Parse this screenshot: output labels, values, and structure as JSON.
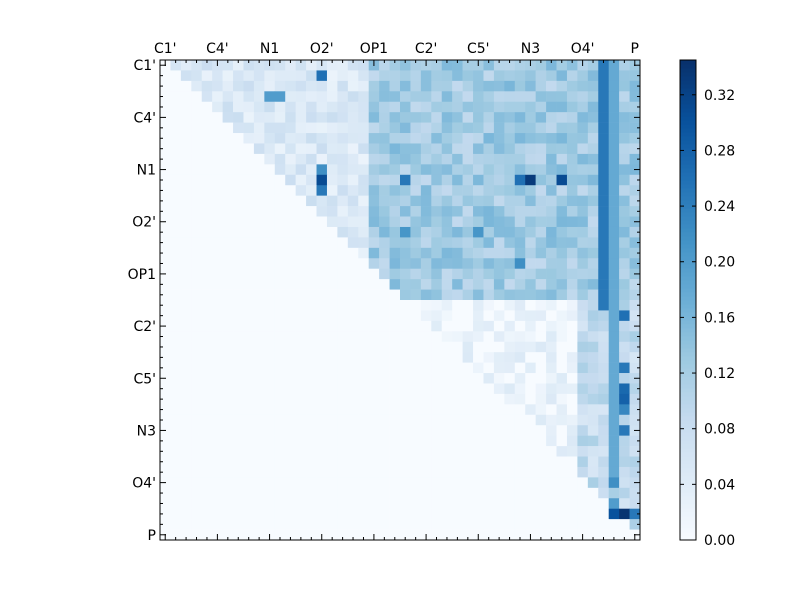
{
  "chart_data": {
    "type": "heatmap",
    "title": "",
    "xlabel": "",
    "ylabel": "",
    "n": 46,
    "tick_labels": [
      "C1'",
      "C4'",
      "N1",
      "O2'",
      "OP1",
      "C2'",
      "C5'",
      "N3",
      "O4'",
      "P"
    ],
    "tick_label_positions": [
      0,
      5,
      10,
      15,
      20,
      25,
      30,
      35,
      40,
      45
    ],
    "x_tick_labels_position": "top",
    "y_tick_labels_position": "left",
    "mask": "upper-triangle (values below diagonal are 0)",
    "colormap": "Blues",
    "vmin": 0.0,
    "vmax": 0.345,
    "colorbar": {
      "ticks": [
        "0.00",
        "0.04",
        "0.08",
        "0.12",
        "0.16",
        "0.20",
        "0.24",
        "0.28",
        "0.32"
      ],
      "tick_values": [
        0.0,
        0.04,
        0.08,
        0.12,
        0.16,
        0.2,
        0.24,
        0.28,
        0.32
      ]
    },
    "notable_cells": [
      {
        "row": 1,
        "col": 15,
        "value": 0.26
      },
      {
        "row": 3,
        "col": 10,
        "value": 0.2
      },
      {
        "row": 3,
        "col": 11,
        "value": 0.2
      },
      {
        "row": 10,
        "col": 15,
        "value": 0.22
      },
      {
        "row": 11,
        "col": 15,
        "value": 0.31
      },
      {
        "row": 11,
        "col": 23,
        "value": 0.25
      },
      {
        "row": 11,
        "col": 34,
        "value": 0.26
      },
      {
        "row": 11,
        "col": 35,
        "value": 0.33
      },
      {
        "row": 11,
        "col": 38,
        "value": 0.31
      },
      {
        "row": 12,
        "col": 15,
        "value": 0.25
      },
      {
        "row": 16,
        "col": 23,
        "value": 0.21
      },
      {
        "row": 16,
        "col": 30,
        "value": 0.21
      },
      {
        "row": 19,
        "col": 34,
        "value": 0.22
      },
      {
        "row": 24,
        "col": 44,
        "value": 0.26
      },
      {
        "row": 29,
        "col": 44,
        "value": 0.25
      },
      {
        "row": 31,
        "col": 44,
        "value": 0.27
      },
      {
        "row": 32,
        "col": 44,
        "value": 0.28
      },
      {
        "row": 33,
        "col": 44,
        "value": 0.23
      },
      {
        "row": 35,
        "col": 44,
        "value": 0.25
      },
      {
        "row": 40,
        "col": 43,
        "value": 0.22
      },
      {
        "row": 42,
        "col": 43,
        "value": 0.2
      },
      {
        "row": 43,
        "col": 43,
        "value": 0.3
      },
      {
        "row": 43,
        "col": 44,
        "value": 0.34
      },
      {
        "row": 43,
        "col": 45,
        "value": 0.25
      }
    ],
    "column_bands": [
      {
        "col": 42,
        "value": 0.25,
        "rows": "0-23"
      },
      {
        "col": 43,
        "value": 0.18,
        "rows": "0-39"
      }
    ]
  }
}
